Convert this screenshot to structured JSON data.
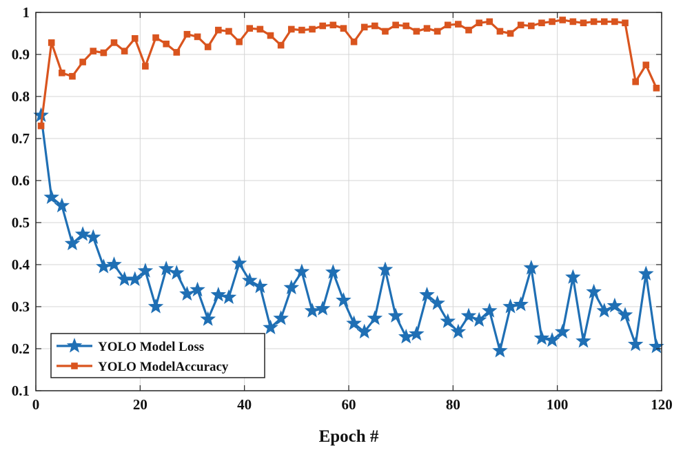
{
  "chart_data": {
    "type": "line",
    "title": "",
    "xlabel": "Epoch #",
    "ylabel": "",
    "xlim": [
      0,
      120
    ],
    "ylim": [
      0.1,
      1
    ],
    "xticks": [
      0,
      20,
      40,
      60,
      80,
      100,
      120
    ],
    "yticks": [
      0.1,
      0.2,
      0.3,
      0.4,
      0.5,
      0.6,
      0.7,
      0.8,
      0.9,
      1
    ],
    "xtick_labels": [
      "0",
      "20",
      "40",
      "60",
      "80",
      "100",
      "120"
    ],
    "ytick_labels": [
      "0.1",
      "0.2",
      "0.3",
      "0.4",
      "0.5",
      "0.6",
      "0.7",
      "0.8",
      "0.9",
      "1"
    ],
    "grid": true,
    "legend_position": "bottom-left",
    "series": [
      {
        "name": "YOLO Model Loss",
        "color": "#1f6fb4",
        "marker": "star",
        "x": [
          1,
          3,
          5,
          7,
          9,
          11,
          13,
          15,
          17,
          19,
          21,
          23,
          25,
          27,
          29,
          31,
          33,
          35,
          37,
          39,
          41,
          43,
          45,
          47,
          49,
          51,
          53,
          55,
          57,
          59,
          61,
          63,
          65,
          67,
          69,
          71,
          73,
          75,
          77,
          79,
          81,
          83,
          85,
          87,
          89,
          91,
          93,
          95,
          97,
          99,
          101,
          103,
          105,
          107,
          109,
          111,
          113,
          115,
          117,
          119
        ],
        "values": [
          0.755,
          0.56,
          0.54,
          0.45,
          0.472,
          0.465,
          0.395,
          0.4,
          0.365,
          0.365,
          0.385,
          0.3,
          0.39,
          0.38,
          0.33,
          0.34,
          0.27,
          0.328,
          0.322,
          0.403,
          0.362,
          0.348,
          0.25,
          0.272,
          0.345,
          0.383,
          0.29,
          0.295,
          0.382,
          0.315,
          0.26,
          0.24,
          0.272,
          0.388,
          0.278,
          0.228,
          0.235,
          0.328,
          0.308,
          0.265,
          0.24,
          0.278,
          0.268,
          0.29,
          0.195,
          0.3,
          0.305,
          0.392,
          0.225,
          0.22,
          0.24,
          0.37,
          0.218,
          0.335,
          0.29,
          0.302,
          0.28,
          0.21,
          0.378,
          0.205
        ]
      },
      {
        "name": "YOLO ModelAccuracy",
        "color": "#d9541e",
        "marker": "square",
        "x": [
          1,
          3,
          5,
          7,
          9,
          11,
          13,
          15,
          17,
          19,
          21,
          23,
          25,
          27,
          29,
          31,
          33,
          35,
          37,
          39,
          41,
          43,
          45,
          47,
          49,
          51,
          53,
          55,
          57,
          59,
          61,
          63,
          65,
          67,
          69,
          71,
          73,
          75,
          77,
          79,
          81,
          83,
          85,
          87,
          89,
          91,
          93,
          95,
          97,
          99,
          101,
          103,
          105,
          107,
          109,
          111,
          113,
          115,
          117,
          119
        ],
        "values": [
          0.73,
          0.928,
          0.856,
          0.848,
          0.882,
          0.908,
          0.904,
          0.928,
          0.908,
          0.938,
          0.872,
          0.94,
          0.925,
          0.905,
          0.948,
          0.942,
          0.918,
          0.958,
          0.955,
          0.93,
          0.962,
          0.96,
          0.945,
          0.922,
          0.96,
          0.958,
          0.96,
          0.968,
          0.97,
          0.962,
          0.93,
          0.965,
          0.968,
          0.955,
          0.97,
          0.968,
          0.955,
          0.962,
          0.955,
          0.97,
          0.972,
          0.958,
          0.975,
          0.978,
          0.955,
          0.95,
          0.97,
          0.968,
          0.975,
          0.978,
          0.982,
          0.978,
          0.975,
          0.978,
          0.978,
          0.978,
          0.975,
          0.835,
          0.875,
          0.82
        ]
      }
    ]
  }
}
